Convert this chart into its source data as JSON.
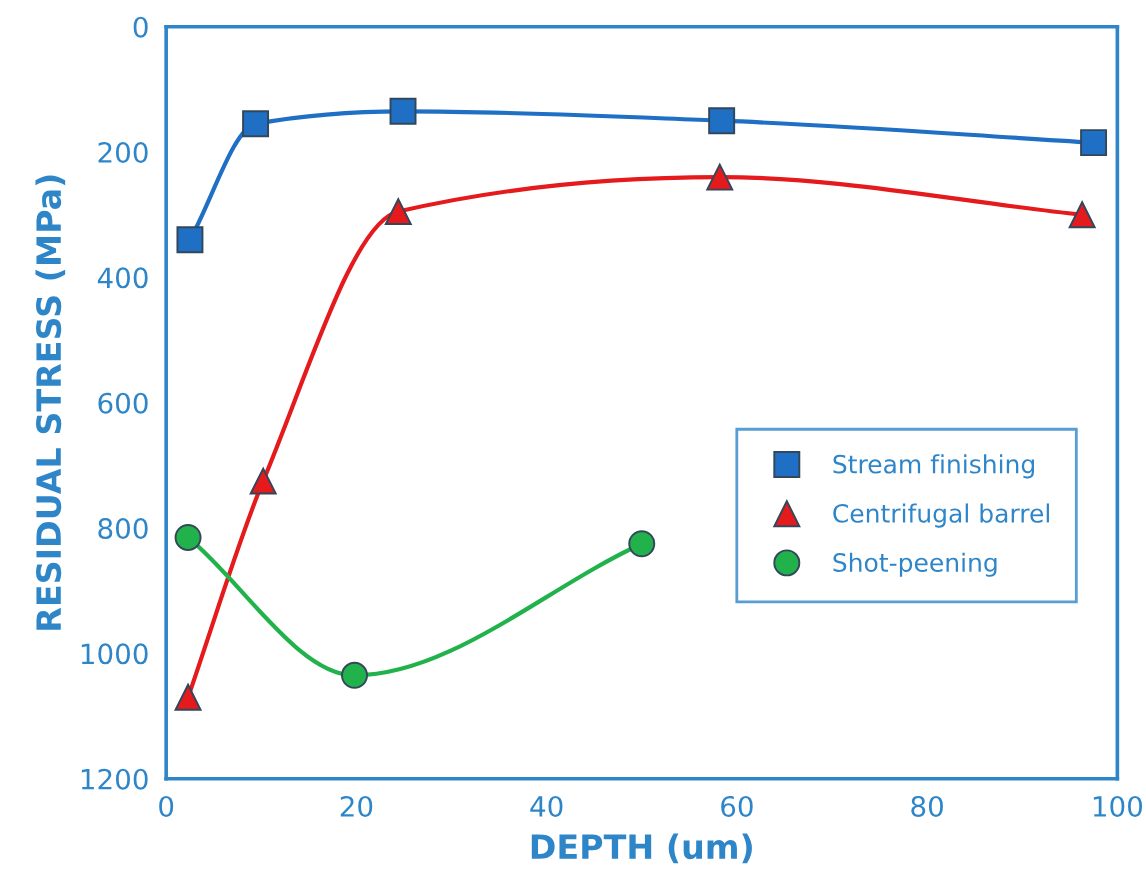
{
  "chart_data": {
    "type": "line",
    "xlabel": "DEPTH (um)",
    "ylabel": "RESIDUAL STRESS (MPa)",
    "xlim": [
      0,
      100
    ],
    "xticks": [
      0,
      20,
      40,
      60,
      80,
      100
    ],
    "ylim": [
      1200,
      0
    ],
    "yticks": [
      0,
      200,
      400,
      600,
      800,
      1000,
      1200
    ],
    "grid": false,
    "legend": "right",
    "line_style": "solid",
    "series": [
      {
        "name": "Stream finishing",
        "color": "#1f6fc5",
        "marker": "square",
        "x": [
          2.5,
          9.4,
          24.9,
          58.4,
          97.5
        ],
        "values": [
          340,
          155,
          135,
          150,
          185
        ]
      },
      {
        "name": "Centrifugal barrel",
        "color": "#e41a1c",
        "marker": "triangle",
        "x": [
          2.3,
          10.2,
          24.4,
          58.2,
          96.3
        ],
        "values": [
          1070,
          725,
          295,
          240,
          300
        ]
      },
      {
        "name": "Shot-peening",
        "color": "#22b24c",
        "marker": "circle",
        "x": [
          2.3,
          19.8,
          50
        ],
        "values": [
          815,
          1035,
          825
        ]
      }
    ]
  }
}
